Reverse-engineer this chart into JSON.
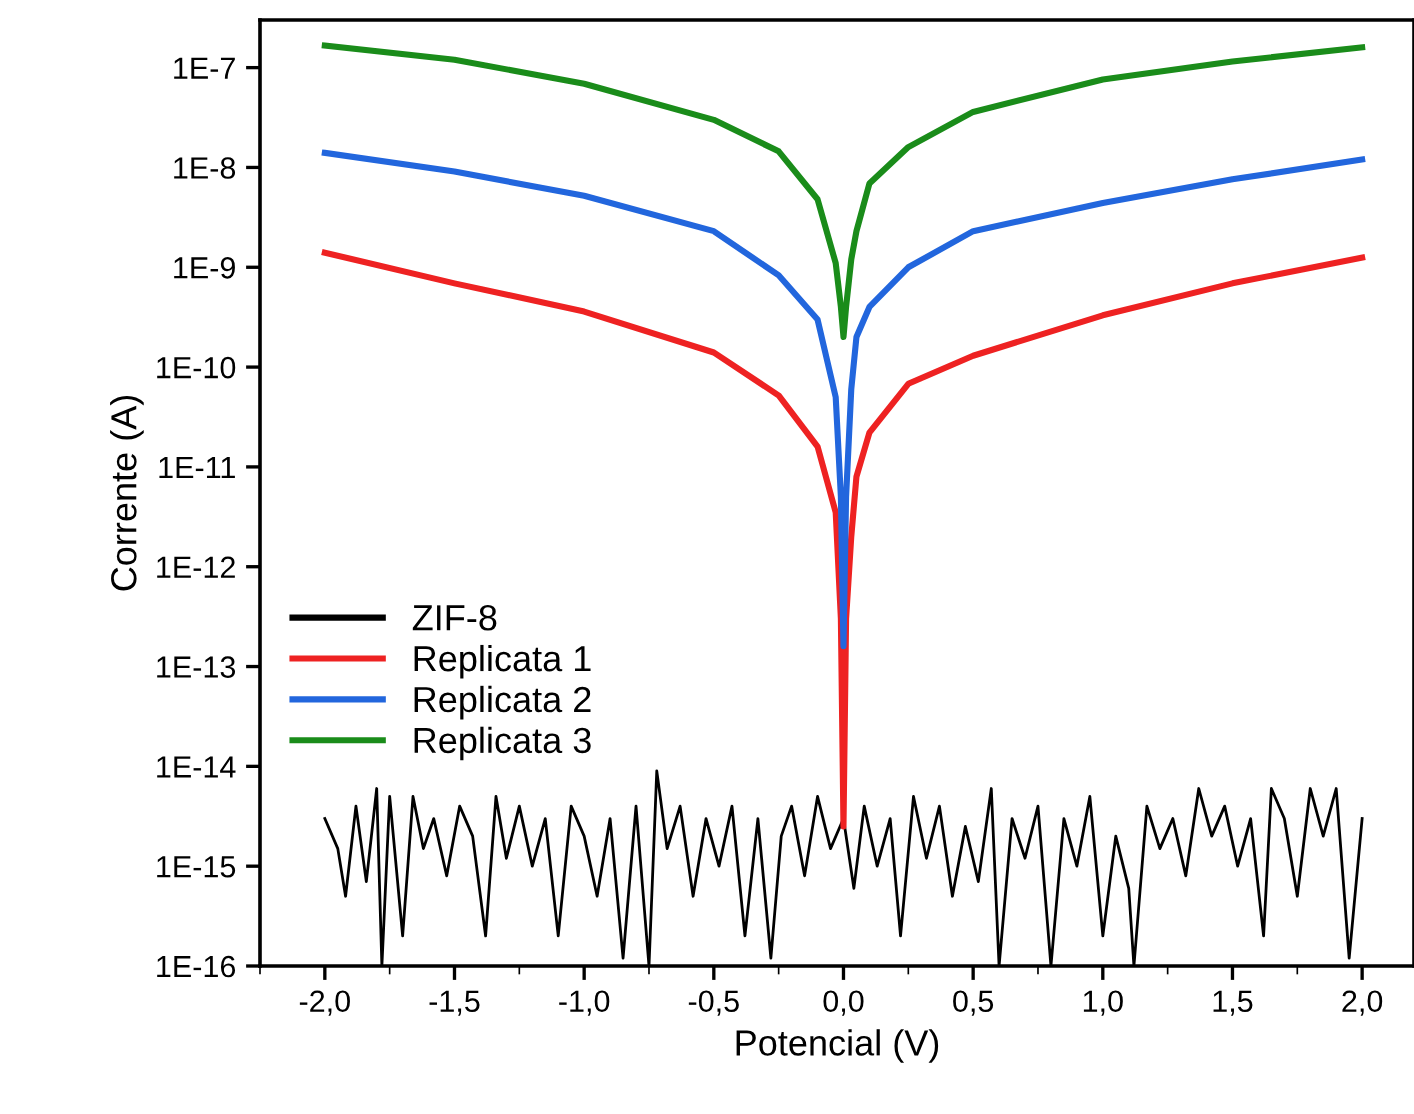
{
  "chart_data": {
    "type": "line",
    "xlabel": "Potencial (V)",
    "ylabel": "Corrente (A)",
    "log": "y",
    "xlim": [
      -2.25,
      2.2
    ],
    "xticks": [
      {
        "value": -2,
        "label": "-2,0"
      },
      {
        "value": -1.5,
        "label": "-1,5"
      },
      {
        "value": -1,
        "label": "-1,0"
      },
      {
        "value": -0.5,
        "label": "-0,5"
      },
      {
        "value": 0,
        "label": "0,0"
      },
      {
        "value": 0.5,
        "label": "0,5"
      },
      {
        "value": 1,
        "label": "1,0"
      },
      {
        "value": 1.5,
        "label": "1,5"
      },
      {
        "value": 2,
        "label": "2,0"
      }
    ],
    "ylim": [
      1e-16,
      3e-07
    ],
    "yticks": [
      {
        "value": 1e-16,
        "label": "1E-16"
      },
      {
        "value": 1e-15,
        "label": "1E-15"
      },
      {
        "value": 1e-14,
        "label": "1E-14"
      },
      {
        "value": 1e-13,
        "label": "1E-13"
      },
      {
        "value": 1e-12,
        "label": "1E-12"
      },
      {
        "value": 1e-11,
        "label": "1E-11"
      },
      {
        "value": 1e-10,
        "label": "1E-10"
      },
      {
        "value": 1e-09,
        "label": "1E-9"
      },
      {
        "value": 1e-08,
        "label": "1E-8"
      },
      {
        "value": 1e-07,
        "label": "1E-7"
      }
    ],
    "legend": "left",
    "grid": false,
    "line_style": "solid",
    "marker": "none",
    "series": [
      {
        "name": "ZIF-8",
        "color": "#000000",
        "x": [
          -2.0,
          -1.95,
          -1.92,
          -1.88,
          -1.84,
          -1.8,
          -1.78,
          -1.75,
          -1.7,
          -1.66,
          -1.62,
          -1.58,
          -1.53,
          -1.48,
          -1.43,
          -1.38,
          -1.34,
          -1.3,
          -1.25,
          -1.2,
          -1.15,
          -1.1,
          -1.05,
          -1.0,
          -0.95,
          -0.9,
          -0.85,
          -0.8,
          -0.75,
          -0.72,
          -0.68,
          -0.63,
          -0.58,
          -0.53,
          -0.48,
          -0.43,
          -0.38,
          -0.33,
          -0.28,
          -0.24,
          -0.2,
          -0.15,
          -0.1,
          -0.05,
          0.0,
          0.04,
          0.08,
          0.13,
          0.18,
          0.22,
          0.27,
          0.32,
          0.37,
          0.42,
          0.47,
          0.52,
          0.57,
          0.6,
          0.65,
          0.7,
          0.75,
          0.8,
          0.85,
          0.9,
          0.95,
          1.0,
          1.05,
          1.1,
          1.12,
          1.17,
          1.22,
          1.27,
          1.32,
          1.37,
          1.42,
          1.47,
          1.52,
          1.57,
          1.62,
          1.65,
          1.7,
          1.75,
          1.8,
          1.85,
          1.9,
          1.95,
          2.0
        ],
        "values": [
          3e-15,
          1.5e-15,
          5e-16,
          4e-15,
          7e-16,
          6e-15,
          1e-16,
          5e-15,
          2e-16,
          5e-15,
          1.5e-15,
          3e-15,
          8e-16,
          4e-15,
          2e-15,
          2e-16,
          5e-15,
          1.2e-15,
          4e-15,
          1e-15,
          3e-15,
          2e-16,
          4e-15,
          2e-15,
          5e-16,
          3e-15,
          1.2e-16,
          4e-15,
          1e-16,
          9e-15,
          1.5e-15,
          4e-15,
          5e-16,
          3e-15,
          1e-15,
          4e-15,
          2e-16,
          3e-15,
          1.2e-16,
          2e-15,
          4e-15,
          8e-16,
          5e-15,
          1.5e-15,
          3e-15,
          6e-16,
          4e-15,
          1e-15,
          3e-15,
          2e-16,
          5e-15,
          1.2e-15,
          4e-15,
          5e-16,
          2.5e-15,
          7e-16,
          6e-15,
          1e-16,
          3e-15,
          1.2e-15,
          4e-15,
          1e-16,
          3e-15,
          1e-15,
          5e-15,
          2e-16,
          2e-15,
          6e-16,
          1e-16,
          4e-15,
          1.5e-15,
          3e-15,
          8e-16,
          6e-15,
          2e-15,
          4e-15,
          1e-15,
          3e-15,
          2e-16,
          6e-15,
          3e-15,
          5e-16,
          6e-15,
          2e-15,
          6e-15,
          1.2e-16,
          3e-15
        ]
      },
      {
        "name": "Replicata 1",
        "color": "#ee2222",
        "x": [
          -2.0,
          -1.5,
          -1.0,
          -0.5,
          -0.25,
          -0.1,
          -0.03,
          -0.01,
          0.0,
          0.01,
          0.03,
          0.05,
          0.1,
          0.25,
          0.5,
          1.0,
          1.5,
          2.0
        ],
        "values": [
          1.4e-09,
          6.9e-10,
          3.6e-10,
          1.4e-10,
          5.2e-11,
          1.6e-11,
          3.5e-12,
          3e-13,
          2.5e-15,
          3e-13,
          2e-12,
          8e-12,
          2.2e-11,
          6.8e-11,
          1.3e-10,
          3.3e-10,
          6.9e-10,
          1.25e-09
        ]
      },
      {
        "name": "Replicata 2",
        "color": "#2266dd",
        "x": [
          -2.0,
          -1.5,
          -1.0,
          -0.5,
          -0.25,
          -0.1,
          -0.03,
          -0.01,
          0.0,
          0.01,
          0.03,
          0.05,
          0.1,
          0.25,
          0.5,
          1.0,
          1.5,
          2.0
        ],
        "values": [
          1.4e-08,
          9.1e-09,
          5.2e-09,
          2.3e-09,
          8.3e-10,
          3e-10,
          5e-11,
          5e-12,
          1.6e-13,
          5e-12,
          6e-11,
          2e-10,
          4e-10,
          1e-09,
          2.3e-09,
          4.4e-09,
          7.6e-09,
          1.2e-08
        ]
      },
      {
        "name": "Replicata 3",
        "color": "#1a8c1a",
        "x": [
          -2.0,
          -1.5,
          -1.0,
          -0.5,
          -0.25,
          -0.1,
          -0.03,
          -0.01,
          0.0,
          0.01,
          0.03,
          0.05,
          0.1,
          0.25,
          0.5,
          1.0,
          1.5,
          2.0
        ],
        "values": [
          1.66e-07,
          1.2e-07,
          6.9e-08,
          3e-08,
          1.45e-08,
          4.8e-09,
          1.1e-09,
          4e-10,
          2e-10,
          4e-10,
          1.2e-09,
          2.3e-09,
          6.9e-09,
          1.6e-08,
          3.6e-08,
          7.6e-08,
          1.15e-07,
          1.6e-07
        ]
      }
    ]
  }
}
